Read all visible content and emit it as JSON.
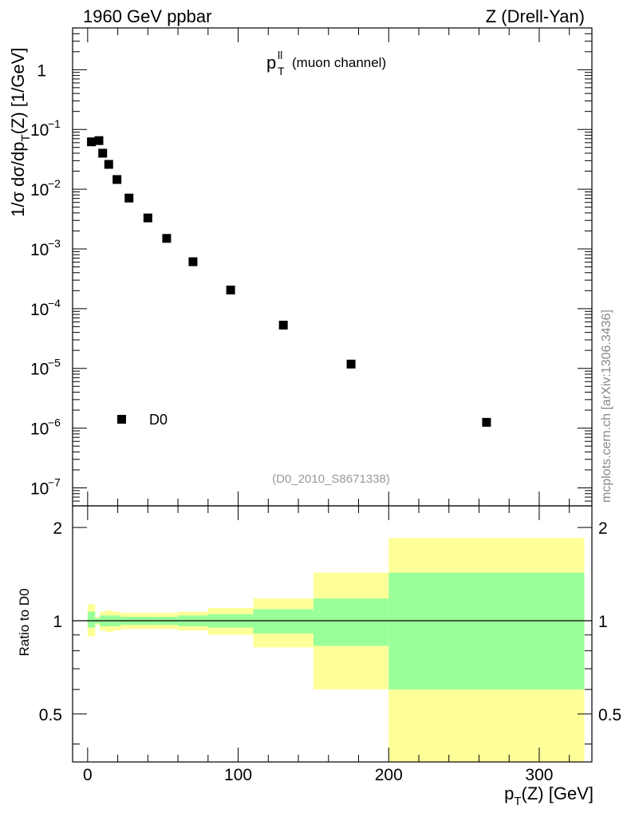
{
  "chart_data": [
    {
      "type": "scatter",
      "title": "p_T^ll (muon channel)",
      "title_main": "p",
      "title_sup": "ll",
      "title_sub": "T",
      "title_rest": "(muon channel)",
      "header_left": "1960 GeV ppbar",
      "header_right": "Z (Drell-Yan)",
      "ylabel": "1/σ dσ/dp_T(Z) [1/GeV]",
      "ylabel_parts": [
        "1/σ  dσ/dp",
        "T",
        "(Z) [1/GeV]"
      ],
      "yscale": "log",
      "ylim": [
        5e-08,
        5
      ],
      "xlim": [
        -10,
        335
      ],
      "ytick_bases": [
        "10",
        "10",
        "10",
        "10",
        "10",
        "10",
        "10"
      ],
      "ytick_exps": [
        "−1",
        "−2",
        "−3",
        "−4",
        "−5",
        "−6",
        "−7"
      ],
      "ytick_one": "1",
      "series": [
        {
          "name": "D0",
          "x": [
            2.5,
            7.5,
            10.0,
            14.0,
            19.5,
            27.5,
            40.0,
            52.5,
            70.0,
            95.0,
            130.0,
            175.0,
            265.0
          ],
          "y": [
            0.062,
            0.065,
            0.04,
            0.026,
            0.0145,
            0.0071,
            0.0033,
            0.0015,
            0.00061,
            0.000205,
            5.3e-05,
            1.18e-05,
            1.25e-06
          ]
        }
      ],
      "legend": {
        "label": "D0",
        "placement": "bottom-left"
      },
      "analysis_tag": "(D0_2010_S8671338)",
      "watermark": "mcplots.cern.ch [arXiv:1306.3436]"
    },
    {
      "type": "area",
      "ylabel": "Ratio to D0",
      "xlabel": "p_T(Z) [GeV]",
      "xlabel_parts": [
        "p",
        "T",
        "(Z) [GeV]"
      ],
      "ylim": [
        0.35,
        2.35
      ],
      "xlim": [
        -10,
        335
      ],
      "yticks": [
        0.5,
        1,
        2
      ],
      "ytick_labels": [
        "0.5",
        "1",
        "2"
      ],
      "xticks": [
        0,
        100,
        200,
        300
      ],
      "xtick_labels": [
        "0",
        "100",
        "200",
        "300"
      ],
      "reference_line": 1,
      "bins": [
        {
          "lo": 0,
          "hi": 5,
          "stat_lo": 0.95,
          "stat_hi": 1.07,
          "total_lo": 0.89,
          "total_hi": 1.13
        },
        {
          "lo": 5,
          "hi": 8,
          "stat_lo": 0.98,
          "stat_hi": 1.02,
          "total_lo": 0.97,
          "total_hi": 1.03
        },
        {
          "lo": 8,
          "hi": 12,
          "stat_lo": 0.96,
          "stat_hi": 1.04,
          "total_lo": 0.93,
          "total_hi": 1.07
        },
        {
          "lo": 12,
          "hi": 17,
          "stat_lo": 0.96,
          "stat_hi": 1.04,
          "total_lo": 0.92,
          "total_hi": 1.08
        },
        {
          "lo": 17,
          "hi": 22,
          "stat_lo": 0.96,
          "stat_hi": 1.04,
          "total_lo": 0.93,
          "total_hi": 1.07
        },
        {
          "lo": 22,
          "hi": 32,
          "stat_lo": 0.97,
          "stat_hi": 1.03,
          "total_lo": 0.94,
          "total_hi": 1.06
        },
        {
          "lo": 32,
          "hi": 45,
          "stat_lo": 0.97,
          "stat_hi": 1.03,
          "total_lo": 0.94,
          "total_hi": 1.06
        },
        {
          "lo": 45,
          "hi": 60,
          "stat_lo": 0.97,
          "stat_hi": 1.03,
          "total_lo": 0.94,
          "total_hi": 1.06
        },
        {
          "lo": 60,
          "hi": 80,
          "stat_lo": 0.96,
          "stat_hi": 1.04,
          "total_lo": 0.93,
          "total_hi": 1.07
        },
        {
          "lo": 80,
          "hi": 110,
          "stat_lo": 0.95,
          "stat_hi": 1.05,
          "total_lo": 0.9,
          "total_hi": 1.1
        },
        {
          "lo": 110,
          "hi": 150,
          "stat_lo": 0.91,
          "stat_hi": 1.09,
          "total_lo": 0.82,
          "total_hi": 1.18
        },
        {
          "lo": 150,
          "hi": 200,
          "stat_lo": 0.83,
          "stat_hi": 1.18,
          "total_lo": 0.6,
          "total_hi": 1.43
        },
        {
          "lo": 200,
          "hi": 330,
          "stat_lo": 0.6,
          "stat_hi": 1.43,
          "total_lo": 0.35,
          "total_hi": 1.85
        }
      ],
      "colors": {
        "stat": "#99ff99",
        "total": "#ffff99",
        "line": "#000000"
      }
    }
  ]
}
